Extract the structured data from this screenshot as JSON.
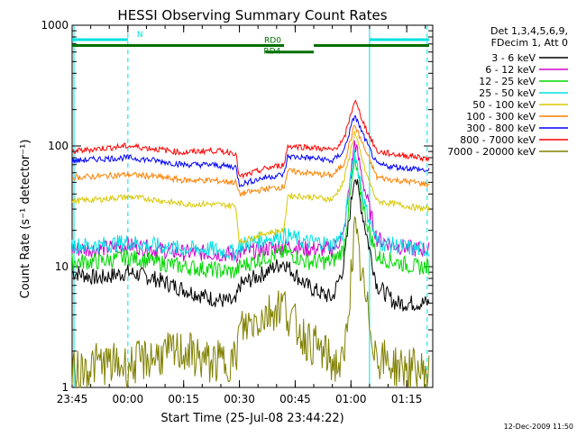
{
  "chart_data": {
    "type": "line",
    "title": "HESSI Observing Summary Count Rates",
    "xlabel": "Start Time (25-Jul-08 23:44:22)",
    "ylabel": "Count Rate (s⁻¹ detector⁻¹)",
    "y_scale": "log",
    "ylim": [
      1,
      1000
    ],
    "xlim_minutes": [
      23.0,
      120.0
    ],
    "x_ticks": [
      {
        "label": "23:45",
        "minute": 23.0
      },
      {
        "label": "00:00",
        "minute": 38.0
      },
      {
        "label": "00:15",
        "minute": 53.0
      },
      {
        "label": "00:30",
        "minute": 68.0
      },
      {
        "label": "00:45",
        "minute": 83.0
      },
      {
        "label": "01:00",
        "minute": 98.0
      },
      {
        "label": "01:15",
        "minute": 113.0
      }
    ],
    "y_ticks": [
      {
        "label": "1",
        "value": 1
      },
      {
        "label": "10",
        "value": 10
      },
      {
        "label": "100",
        "value": 100
      },
      {
        "label": "1000",
        "value": 1000
      }
    ],
    "legend_header": [
      "Det 1,3,4,5,6,9,",
      "FDecim 1, Att 0"
    ],
    "legend_placement": "right",
    "grid": false,
    "timestamp": "12-Dec-2009 11:50",
    "x_sample_minutes": [
      23,
      30,
      38,
      45,
      53,
      60,
      67,
      68,
      75,
      80,
      81,
      86,
      90,
      93,
      96,
      99,
      102,
      105,
      110,
      115,
      119
    ],
    "series": [
      {
        "name": "3 - 6 keV",
        "color": "#000000",
        "values": [
          9,
          8,
          9,
          8,
          6.5,
          5.5,
          5,
          7,
          9,
          11,
          10,
          7,
          6,
          5.5,
          10,
          60,
          20,
          7,
          5,
          5,
          5
        ]
      },
      {
        "name": "6 - 12 keV",
        "color": "#d000d0",
        "values": [
          14,
          14,
          15,
          14,
          13,
          13,
          12.5,
          13,
          14,
          15,
          15,
          14,
          14,
          14,
          18,
          110,
          40,
          17,
          15,
          14,
          14
        ]
      },
      {
        "name": "12 - 25 keV",
        "color": "#00d800",
        "values": [
          11,
          11,
          12,
          11,
          10,
          9.5,
          9,
          10,
          12,
          13,
          13,
          11,
          11,
          11,
          14,
          75,
          25,
          12,
          11,
          10,
          10
        ]
      },
      {
        "name": "25 - 50 keV",
        "color": "#00e0e0",
        "values": [
          15,
          15,
          16,
          15,
          14,
          14,
          13,
          15,
          17,
          18,
          18,
          16,
          16,
          15,
          19,
          90,
          30,
          16,
          15,
          14,
          14
        ]
      },
      {
        "name": "50 - 100 keV",
        "color": "#d8c800",
        "values": [
          35,
          36,
          38,
          36,
          33,
          33,
          32,
          16,
          19,
          20,
          39,
          38,
          37,
          36,
          50,
          130,
          60,
          35,
          33,
          31,
          30
        ]
      },
      {
        "name": "100 - 300 keV",
        "color": "#ff8000",
        "values": [
          55,
          56,
          58,
          56,
          52,
          52,
          50,
          40,
          44,
          46,
          62,
          60,
          58,
          57,
          70,
          150,
          90,
          55,
          52,
          50,
          48
        ]
      },
      {
        "name": "300 - 800 keV",
        "color": "#0000ff",
        "values": [
          75,
          78,
          80,
          76,
          70,
          70,
          67,
          48,
          55,
          58,
          82,
          80,
          78,
          75,
          90,
          180,
          110,
          70,
          67,
          65,
          62
        ]
      },
      {
        "name": "800 - 7000 keV",
        "color": "#ff0000",
        "values": [
          90,
          95,
          100,
          95,
          88,
          92,
          88,
          55,
          65,
          70,
          100,
          98,
          95,
          92,
          110,
          240,
          140,
          90,
          85,
          82,
          78
        ]
      },
      {
        "name": "7000 - 20000 keV",
        "color": "#808000",
        "values": [
          1.3,
          1.6,
          1.5,
          1.8,
          2.0,
          1.6,
          1.7,
          3,
          4,
          5,
          4,
          2.5,
          2,
          1.6,
          1.5,
          20,
          5,
          1.8,
          1.5,
          1.4,
          1.3
        ]
      }
    ],
    "annotations": [
      {
        "label": "N",
        "color": "#00e0e0",
        "segments": [
          [
            23,
            38
          ],
          [
            103,
            119
          ]
        ],
        "y_value": 760
      },
      {
        "label": "RD0",
        "color": "#007000",
        "segments": [
          [
            23,
            80
          ],
          [
            88,
            119
          ]
        ],
        "y_value": 680
      },
      {
        "label": "RD4",
        "color": "#007000",
        "segments": [
          [
            75,
            88
          ]
        ],
        "y_value": 600
      }
    ],
    "vertical_markers": [
      {
        "minute": 23.5,
        "color": "#00e0e0",
        "style": "solid"
      },
      {
        "minute": 38.0,
        "color": "#00e0e0",
        "style": "dashed"
      },
      {
        "minute": 103.0,
        "color": "#00e0e0",
        "style": "solid"
      },
      {
        "minute": 118.5,
        "color": "#00e0e0",
        "style": "dashed"
      }
    ]
  }
}
